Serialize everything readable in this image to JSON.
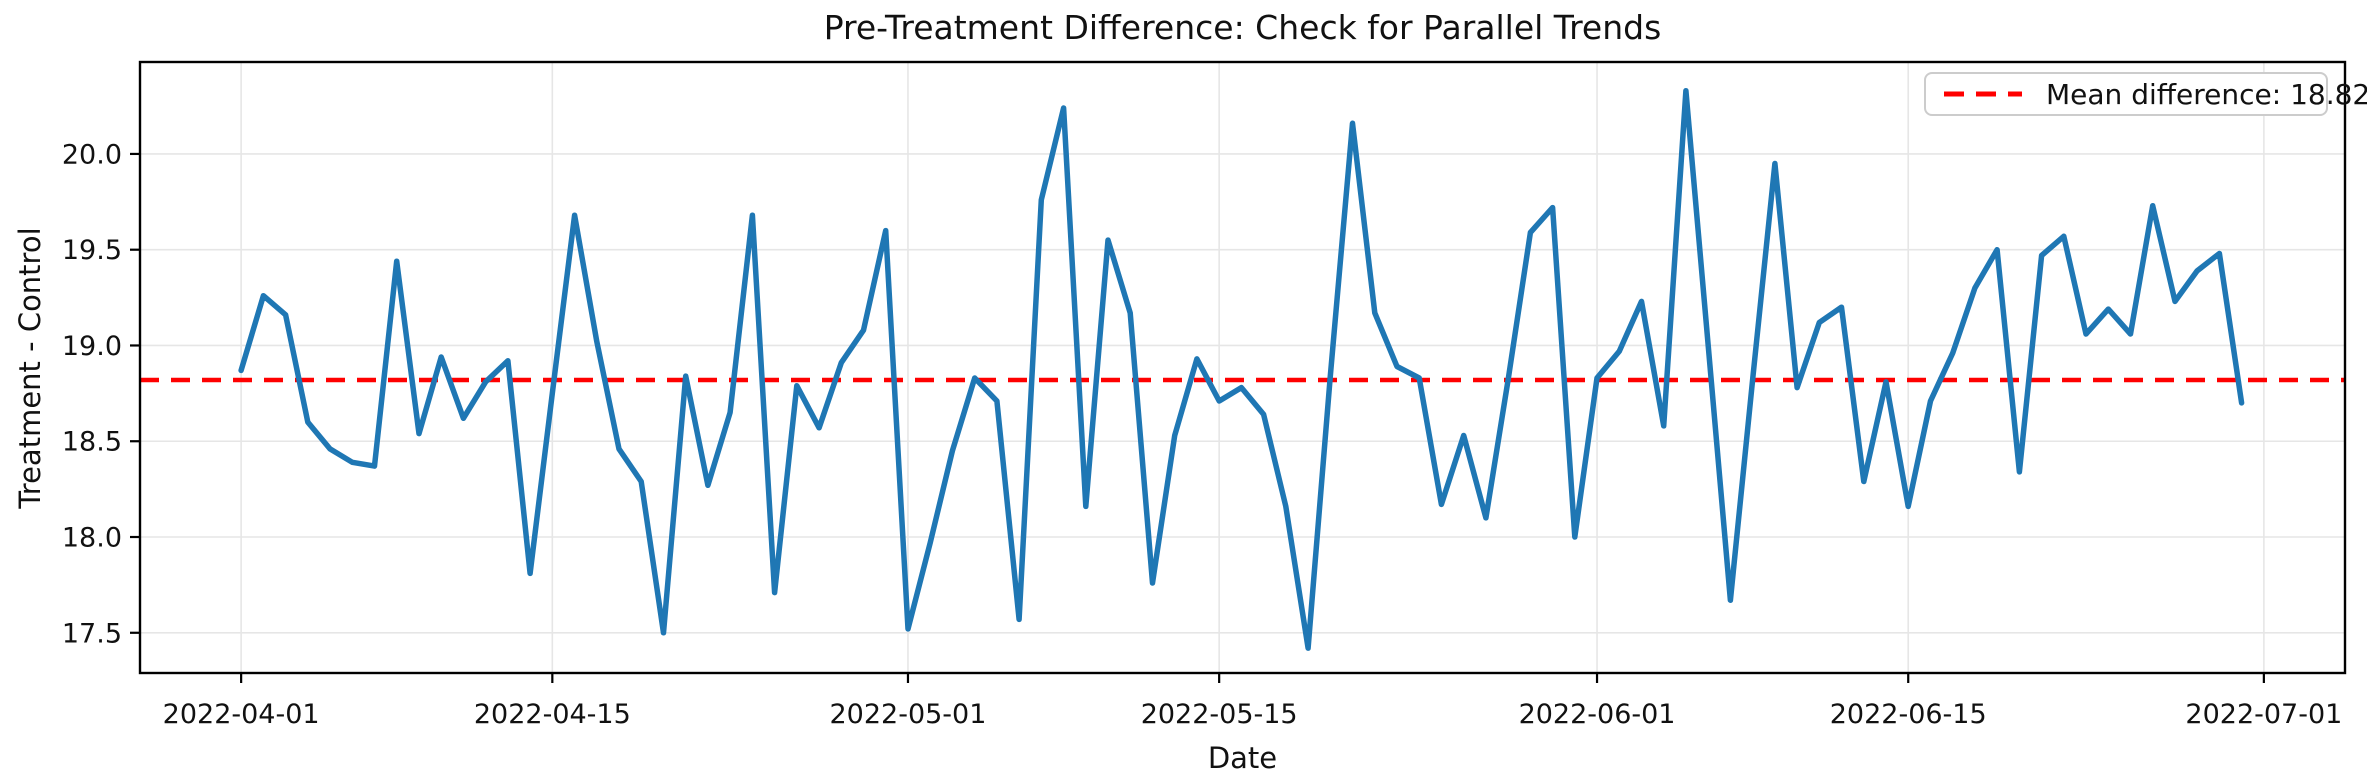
{
  "figure": {
    "title": "Pre-Treatment Difference: Check for Parallel Trends"
  },
  "chart_data": {
    "type": "line",
    "title": "Pre-Treatment Difference: Check for Parallel Trends",
    "xlabel": "Date",
    "ylabel": "Treatment - Control",
    "grid": true,
    "legend_position": "upper right",
    "ylim": [
      17.29,
      20.48
    ],
    "xlim_days": [
      -4.55,
      94.65
    ],
    "mean_line": {
      "value": 18.82,
      "label": "Mean difference: 18.82",
      "style": "dashed"
    },
    "y_axis": {
      "tick_values": [
        17.5,
        18.0,
        18.5,
        19.0,
        19.5,
        20.0
      ],
      "tick_labels": [
        "17.5",
        "18.0",
        "18.5",
        "19.0",
        "19.5",
        "20.0"
      ]
    },
    "x_axis": {
      "ticks": [
        {
          "day": 0,
          "label": "2022-04-01"
        },
        {
          "day": 14,
          "label": "2022-04-15"
        },
        {
          "day": 30,
          "label": "2022-05-01"
        },
        {
          "day": 44,
          "label": "2022-05-15"
        },
        {
          "day": 61,
          "label": "2022-06-01"
        },
        {
          "day": 75,
          "label": "2022-06-15"
        },
        {
          "day": 91,
          "label": "2022-07-01"
        }
      ]
    },
    "colors": {
      "line": "#1f77b4",
      "mean": "#ff0000",
      "grid": "#e6e6e6",
      "spine": "#000000",
      "text": "#111111",
      "legend_border": "#cccccc"
    },
    "x": [
      "2022-04-01",
      "2022-04-02",
      "2022-04-03",
      "2022-04-04",
      "2022-04-05",
      "2022-04-06",
      "2022-04-07",
      "2022-04-08",
      "2022-04-09",
      "2022-04-10",
      "2022-04-11",
      "2022-04-12",
      "2022-04-13",
      "2022-04-14",
      "2022-04-15",
      "2022-04-16",
      "2022-04-17",
      "2022-04-18",
      "2022-04-19",
      "2022-04-20",
      "2022-04-21",
      "2022-04-22",
      "2022-04-23",
      "2022-04-24",
      "2022-04-25",
      "2022-04-26",
      "2022-04-27",
      "2022-04-28",
      "2022-04-29",
      "2022-04-30",
      "2022-05-01",
      "2022-05-02",
      "2022-05-03",
      "2022-05-04",
      "2022-05-05",
      "2022-05-06",
      "2022-05-07",
      "2022-05-08",
      "2022-05-09",
      "2022-05-10",
      "2022-05-11",
      "2022-05-12",
      "2022-05-13",
      "2022-05-14",
      "2022-05-15",
      "2022-05-16",
      "2022-05-17",
      "2022-05-18",
      "2022-05-19",
      "2022-05-20",
      "2022-05-21",
      "2022-05-22",
      "2022-05-23",
      "2022-05-24",
      "2022-05-25",
      "2022-05-26",
      "2022-05-27",
      "2022-05-28",
      "2022-05-29",
      "2022-05-30",
      "2022-05-31",
      "2022-06-01",
      "2022-06-02",
      "2022-06-03",
      "2022-06-04",
      "2022-06-05",
      "2022-06-06",
      "2022-06-07",
      "2022-06-08",
      "2022-06-09",
      "2022-06-10",
      "2022-06-11",
      "2022-06-12",
      "2022-06-13",
      "2022-06-14",
      "2022-06-15",
      "2022-06-16",
      "2022-06-17",
      "2022-06-18",
      "2022-06-19",
      "2022-06-20",
      "2022-06-21",
      "2022-06-22",
      "2022-06-23",
      "2022-06-24",
      "2022-06-25",
      "2022-06-26",
      "2022-06-27",
      "2022-06-28",
      "2022-06-29",
      "2022-06-30"
    ],
    "values": [
      18.87,
      19.26,
      19.16,
      18.6,
      18.46,
      18.39,
      18.37,
      19.44,
      18.54,
      18.94,
      18.62,
      18.81,
      18.92,
      17.81,
      18.75,
      19.68,
      19.02,
      18.46,
      18.29,
      17.5,
      18.84,
      18.27,
      18.65,
      19.68,
      17.71,
      18.79,
      18.57,
      18.91,
      19.08,
      19.6,
      17.52,
      17.97,
      18.45,
      18.83,
      18.71,
      17.57,
      19.76,
      20.24,
      18.16,
      19.55,
      19.17,
      17.76,
      18.53,
      18.93,
      18.71,
      18.78,
      18.64,
      18.16,
      17.42,
      18.84,
      20.16,
      19.17,
      18.89,
      18.83,
      18.17,
      18.53,
      18.1,
      18.82,
      19.59,
      19.72,
      18.0,
      18.83,
      18.97,
      19.23,
      18.58,
      20.33,
      19.0,
      17.67,
      18.82,
      19.95,
      18.78,
      19.12,
      19.2,
      18.29,
      18.81,
      18.16,
      18.71,
      18.96,
      19.3,
      19.5,
      18.34,
      19.47,
      19.57,
      19.06,
      19.19,
      19.06,
      19.73,
      19.23,
      19.39,
      19.48,
      18.7
    ]
  }
}
